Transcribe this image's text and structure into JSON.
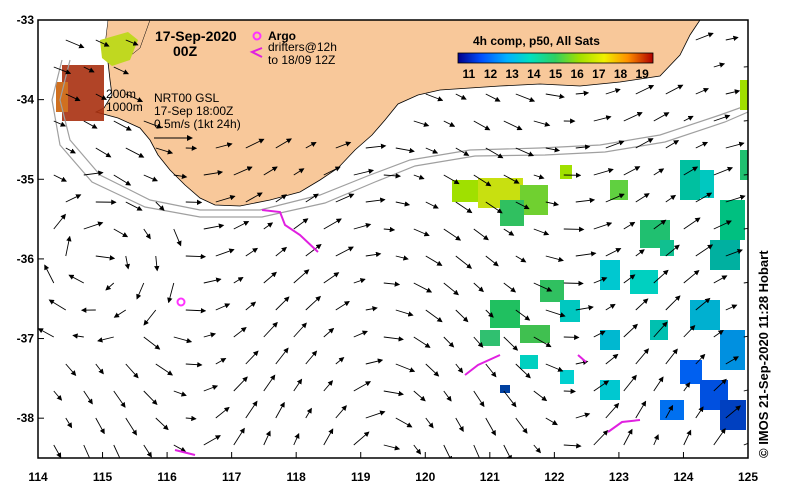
{
  "title": {
    "date": "17-Sep-2020",
    "time": "00Z"
  },
  "legend": {
    "argo_label": "Argo",
    "drifters_line1": "drifters@12h",
    "drifters_line2": "to 18/09 12Z",
    "colorbar_title": "4h comp, p50, All Sats",
    "colorbar_ticks": [
      "11",
      "12",
      "13",
      "14",
      "15",
      "16",
      "17",
      "18",
      "19"
    ]
  },
  "isobaths": {
    "label_200": "200m",
    "label_1000": "1000m"
  },
  "currents_info": {
    "line1": "NRT00 GSL",
    "line2": "17-Sep 18:00Z",
    "line3": "0.5m/s (1kt 24h)"
  },
  "axes": {
    "x_ticks": [
      "114",
      "115",
      "116",
      "117",
      "118",
      "119",
      "120",
      "121",
      "122",
      "123",
      "124",
      "125"
    ],
    "y_ticks": [
      "-33",
      "-34",
      "-35",
      "-36",
      "-37",
      "-38"
    ],
    "lon_range": [
      114,
      125
    ],
    "lat_range": [
      -38.5,
      -33
    ]
  },
  "credit": "© IMOS 21-Sep-2020 11:28 Hobart",
  "colors": {
    "land": "#f8c89a",
    "ocean": "#ffffff",
    "argo": "#ff33ff",
    "drifter": "#e020e0",
    "isobath": "#a0a0a0"
  }
}
